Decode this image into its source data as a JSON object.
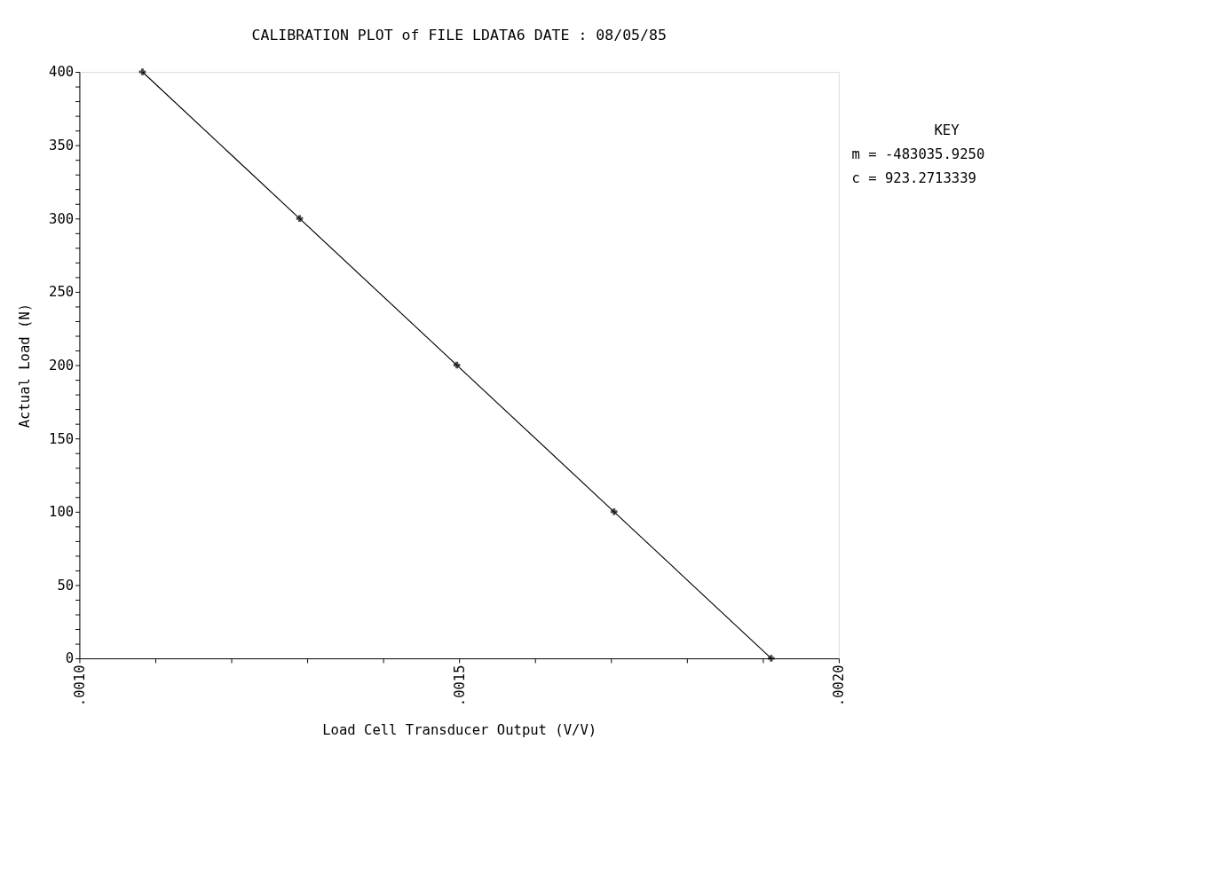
{
  "chart_data": {
    "type": "line",
    "title": "CALIBRATION PLOT of FILE LDATA6     DATE : 08/05/85",
    "xlabel": "Load Cell Transducer Output (V/V)",
    "ylabel": "Actual Load (N)",
    "x": [
      0.001083,
      0.00129,
      0.001497,
      0.001704,
      0.001911
    ],
    "series": [
      {
        "color": "#000000",
        "values": [
          400,
          300,
          200,
          100,
          0
        ]
      }
    ],
    "marker": "cross",
    "line_style": "solid",
    "grid": false,
    "legend": false,
    "xlim": [
      0.001,
      0.002
    ],
    "ylim": [
      0,
      400
    ],
    "xticks": [
      {
        "value": 0.001,
        "label": ".0010"
      },
      {
        "value": 0.0011,
        "label": null
      },
      {
        "value": 0.0012,
        "label": null
      },
      {
        "value": 0.0013,
        "label": null
      },
      {
        "value": 0.0014,
        "label": null
      },
      {
        "value": 0.0015,
        "label": ".0015"
      },
      {
        "value": 0.0016,
        "label": null
      },
      {
        "value": 0.0017,
        "label": null
      },
      {
        "value": 0.0018,
        "label": null
      },
      {
        "value": 0.0019,
        "label": null
      },
      {
        "value": 0.002,
        "label": ".0020"
      }
    ],
    "yticks": [
      0,
      {
        "value": 10,
        "label": null
      },
      {
        "value": 20,
        "label": null
      },
      {
        "value": 30,
        "label": null
      },
      {
        "value": 40,
        "label": null
      },
      50,
      {
        "value": 60,
        "label": null
      },
      {
        "value": 70,
        "label": null
      },
      {
        "value": 80,
        "label": null
      },
      {
        "value": 90,
        "label": null
      },
      100,
      {
        "value": 110,
        "label": null
      },
      {
        "value": 120,
        "label": null
      },
      {
        "value": 130,
        "label": null
      },
      {
        "value": 140,
        "label": null
      },
      150,
      {
        "value": 160,
        "label": null
      },
      {
        "value": 170,
        "label": null
      },
      {
        "value": 180,
        "label": null
      },
      {
        "value": 190,
        "label": null
      },
      200,
      {
        "value": 210,
        "label": null
      },
      {
        "value": 220,
        "label": null
      },
      {
        "value": 230,
        "label": null
      },
      {
        "value": 240,
        "label": null
      },
      250,
      {
        "value": 260,
        "label": null
      },
      {
        "value": 270,
        "label": null
      },
      {
        "value": 280,
        "label": null
      },
      {
        "value": 290,
        "label": null
      },
      300,
      {
        "value": 310,
        "label": null
      },
      {
        "value": 320,
        "label": null
      },
      {
        "value": 330,
        "label": null
      },
      {
        "value": 340,
        "label": null
      },
      350,
      {
        "value": 360,
        "label": null
      },
      {
        "value": 370,
        "label": null
      },
      {
        "value": 380,
        "label": null
      },
      {
        "value": 390,
        "label": null
      },
      400
    ],
    "annotations": [
      "KEY",
      "m = -483035.9250",
      "c =    923.2713339"
    ]
  }
}
